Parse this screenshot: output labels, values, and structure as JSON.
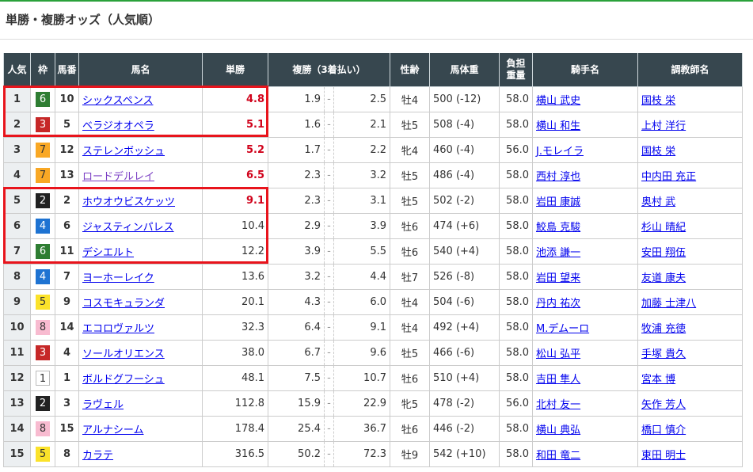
{
  "title": "単勝・複勝オッズ（人気順）",
  "colors": {
    "accent_bar": "#2aa13a",
    "header_bg": "#37474f",
    "highlight": "#e8141c",
    "hot_odds": "#d0021b"
  },
  "waku_colors": {
    "1": {
      "bg": "#ffffff",
      "fg": "#333333"
    },
    "2": {
      "bg": "#222222",
      "fg": "#ffffff"
    },
    "3": {
      "bg": "#c62828",
      "fg": "#ffffff"
    },
    "4": {
      "bg": "#1e73d2",
      "fg": "#ffffff"
    },
    "5": {
      "bg": "#fbe22a",
      "fg": "#333333"
    },
    "6": {
      "bg": "#2e7d32",
      "fg": "#ffffff"
    },
    "7": {
      "bg": "#f9a825",
      "fg": "#333333"
    },
    "8": {
      "bg": "#f8bbd0",
      "fg": "#333333"
    }
  },
  "headers": {
    "pop": "人気",
    "waku": "枠",
    "umaban": "馬番",
    "name": "馬名",
    "tansho": "単勝",
    "fukusho": "複勝（3着払い）",
    "sexage": "性齢",
    "weight": "馬体重",
    "burden_1": "負担",
    "burden_2": "重量",
    "jockey": "騎手名",
    "trainer": "調教師名"
  },
  "rows": [
    {
      "pop": "1",
      "waku": "6",
      "umaban": "10",
      "name": "シックスペンス",
      "tansho": "4.8",
      "hot": true,
      "fmin": "1.9",
      "fmax": "2.5",
      "sexage": "牡4",
      "weight": "500 (-12)",
      "burden": "58.0",
      "jockey": "横山 武史",
      "trainer": "国枝 栄"
    },
    {
      "pop": "2",
      "waku": "3",
      "umaban": "5",
      "name": "ベラジオオペラ",
      "tansho": "5.1",
      "hot": true,
      "fmin": "1.6",
      "fmax": "2.1",
      "sexage": "牡5",
      "weight": "508 (-4)",
      "burden": "58.0",
      "jockey": "横山 和生",
      "trainer": "上村 洋行"
    },
    {
      "pop": "3",
      "waku": "7",
      "umaban": "12",
      "name": "ステレンボッシュ",
      "tansho": "5.2",
      "hot": true,
      "fmin": "1.7",
      "fmax": "2.2",
      "sexage": "牝4",
      "weight": "460 (-4)",
      "burden": "56.0",
      "jockey": "J.モレイラ",
      "trainer": "国枝 栄"
    },
    {
      "pop": "4",
      "waku": "7",
      "umaban": "13",
      "name": "ロードデルレイ",
      "tansho": "6.5",
      "hot": true,
      "visited": true,
      "fmin": "2.3",
      "fmax": "3.2",
      "sexage": "牡5",
      "weight": "486 (-4)",
      "burden": "58.0",
      "jockey": "西村 淳也",
      "trainer": "中内田 充正"
    },
    {
      "pop": "5",
      "waku": "2",
      "umaban": "2",
      "name": "ホウオウビスケッツ",
      "tansho": "9.1",
      "hot": true,
      "fmin": "2.3",
      "fmax": "3.1",
      "sexage": "牡5",
      "weight": "502 (-2)",
      "burden": "58.0",
      "jockey": "岩田 康誠",
      "trainer": "奥村 武"
    },
    {
      "pop": "6",
      "waku": "4",
      "umaban": "6",
      "name": "ジャスティンパレス",
      "tansho": "10.4",
      "hot": false,
      "fmin": "2.9",
      "fmax": "3.9",
      "sexage": "牡6",
      "weight": "474 (+6)",
      "burden": "58.0",
      "jockey": "鮫島 克駿",
      "trainer": "杉山 晴紀"
    },
    {
      "pop": "7",
      "waku": "6",
      "umaban": "11",
      "name": "デシエルト",
      "tansho": "12.2",
      "hot": false,
      "fmin": "3.9",
      "fmax": "5.5",
      "sexage": "牡6",
      "weight": "540 (+4)",
      "burden": "58.0",
      "jockey": "池添 謙一",
      "trainer": "安田 翔伍"
    },
    {
      "pop": "8",
      "waku": "4",
      "umaban": "7",
      "name": "ヨーホーレイク",
      "tansho": "13.6",
      "hot": false,
      "fmin": "3.2",
      "fmax": "4.4",
      "sexage": "牡7",
      "weight": "526 (-8)",
      "burden": "58.0",
      "jockey": "岩田 望来",
      "trainer": "友道 康夫"
    },
    {
      "pop": "9",
      "waku": "5",
      "umaban": "9",
      "name": "コスモキュランダ",
      "tansho": "20.1",
      "hot": false,
      "fmin": "4.3",
      "fmax": "6.0",
      "sexage": "牡4",
      "weight": "504 (-6)",
      "burden": "58.0",
      "jockey": "丹内 祐次",
      "trainer": "加藤 士津八"
    },
    {
      "pop": "10",
      "waku": "8",
      "umaban": "14",
      "name": "エコロヴァルツ",
      "tansho": "32.3",
      "hot": false,
      "fmin": "6.4",
      "fmax": "9.1",
      "sexage": "牡4",
      "weight": "492 (+4)",
      "burden": "58.0",
      "jockey": "M.デムーロ",
      "trainer": "牧浦 充徳"
    },
    {
      "pop": "11",
      "waku": "3",
      "umaban": "4",
      "name": "ソールオリエンス",
      "tansho": "38.0",
      "hot": false,
      "fmin": "6.7",
      "fmax": "9.6",
      "sexage": "牡5",
      "weight": "466 (-6)",
      "burden": "58.0",
      "jockey": "松山 弘平",
      "trainer": "手塚 貴久"
    },
    {
      "pop": "12",
      "waku": "1",
      "umaban": "1",
      "name": "ボルドグフーシュ",
      "tansho": "48.1",
      "hot": false,
      "fmin": "7.5",
      "fmax": "10.7",
      "sexage": "牡6",
      "weight": "510 (+4)",
      "burden": "58.0",
      "jockey": "吉田 隼人",
      "trainer": "宮本 博"
    },
    {
      "pop": "13",
      "waku": "2",
      "umaban": "3",
      "name": "ラヴェル",
      "tansho": "112.8",
      "hot": false,
      "fmin": "15.9",
      "fmax": "22.9",
      "sexage": "牝5",
      "weight": "478 (-2)",
      "burden": "56.0",
      "jockey": "北村 友一",
      "trainer": "矢作 芳人"
    },
    {
      "pop": "14",
      "waku": "8",
      "umaban": "15",
      "name": "アルナシーム",
      "tansho": "178.4",
      "hot": false,
      "fmin": "25.4",
      "fmax": "36.7",
      "sexage": "牡6",
      "weight": "446 (-2)",
      "burden": "58.0",
      "jockey": "横山 典弘",
      "trainer": "橋口 慎介"
    },
    {
      "pop": "15",
      "waku": "5",
      "umaban": "8",
      "name": "カラテ",
      "tansho": "316.5",
      "hot": false,
      "fmin": "50.2",
      "fmax": "72.3",
      "sexage": "牡9",
      "weight": "542 (+10)",
      "burden": "58.0",
      "jockey": "和田 竜二",
      "trainer": "東田 明士"
    }
  ],
  "fukusho_separator": "-"
}
